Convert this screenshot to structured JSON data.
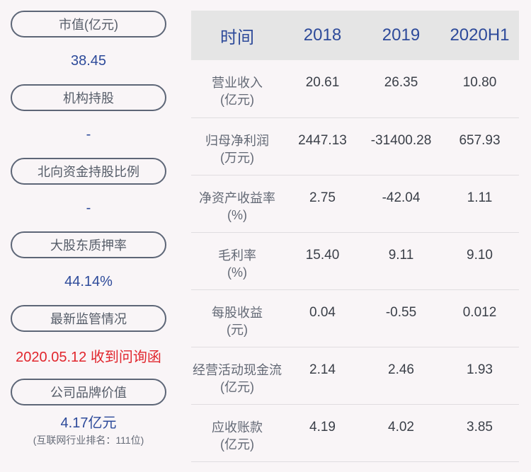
{
  "left": [
    {
      "label": "市值(亿元)",
      "value": "38.45"
    },
    {
      "label": "机构持股",
      "value": "-"
    },
    {
      "label": "北向资金持股比例",
      "value": "-"
    },
    {
      "label": "大股东质押率",
      "value": "44.14%"
    },
    {
      "label": "最新监管情况",
      "value": "2020.05.12 收到问询函"
    },
    {
      "label": "公司品牌价值",
      "value": "4.17亿元",
      "sub": "(互联网行业排名：111位)"
    }
  ],
  "table": {
    "headers": [
      "时间",
      "2018",
      "2019",
      "2020H1"
    ],
    "rows": [
      {
        "l1": "营业收入",
        "l2": "(亿元)",
        "v": [
          "20.61",
          "26.35",
          "10.80"
        ]
      },
      {
        "l1": "归母净利润",
        "l2": "(万元)",
        "v": [
          "2447.13",
          "-31400.28",
          "657.93"
        ]
      },
      {
        "l1": "净资产收益率",
        "l2": "(%)",
        "v": [
          "2.75",
          "-42.04",
          "1.11"
        ]
      },
      {
        "l1": "毛利率",
        "l2": "(%)",
        "v": [
          "15.40",
          "9.11",
          "9.10"
        ]
      },
      {
        "l1": "每股收益",
        "l2": "(元)",
        "v": [
          "0.04",
          "-0.55",
          "0.012"
        ]
      },
      {
        "l1": "经营活动现金流",
        "l2": "(亿元)",
        "v": [
          "2.14",
          "2.46",
          "1.93"
        ]
      },
      {
        "l1": "应收账款",
        "l2": "(亿元)",
        "v": [
          "4.19",
          "4.02",
          "3.85"
        ]
      }
    ]
  },
  "colors": {
    "accent": "#2d4a9a",
    "alert": "#e1262d",
    "header_bg": "#e5e5e5"
  }
}
